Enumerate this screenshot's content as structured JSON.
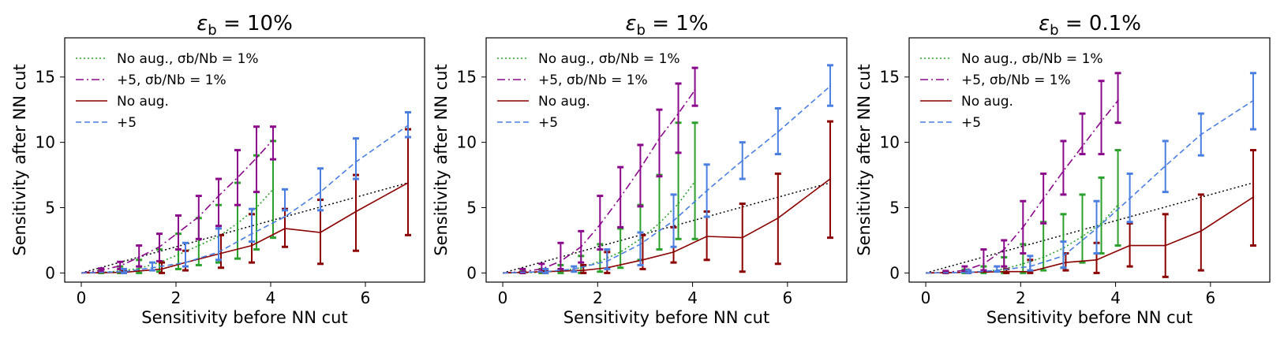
{
  "colors": {
    "green": "#2ca02c",
    "purple": "#8b0a8b",
    "darkred": "#8b0000",
    "blue": "#4a7fe0",
    "black": "#000000"
  },
  "legend_labels": [
    "No aug., σb/Nb = 1%",
    "+5, σb/Nb = 1%",
    "No aug.",
    "+5"
  ],
  "chart_data": [
    {
      "type": "line",
      "title_main": "ε",
      "title_sub": "b",
      "title_rest": " = 10%",
      "xlabel": "Sensitivity before NN cut",
      "ylabel": "Sensitivity after NN cut",
      "xlim": [
        -0.35,
        7.25
      ],
      "ylim": [
        -0.7,
        18
      ],
      "xticks": [
        0,
        2,
        4,
        6
      ],
      "yticks": [
        0,
        5,
        10,
        15
      ],
      "diagonal": [
        [
          0,
          0
        ],
        [
          6.9,
          6.9
        ]
      ],
      "series": [
        {
          "name": "No aug., σb/Nb = 1%",
          "color_key": "green",
          "style": "dotted",
          "x": [
            0,
            0.42,
            0.82,
            1.22,
            1.65,
            2.05,
            2.48,
            2.9,
            3.3,
            3.7,
            4.05
          ],
          "y": [
            0,
            0.05,
            0.15,
            0.35,
            0.8,
            1.4,
            2.1,
            2.8,
            3.8,
            5.0,
            6.4
          ],
          "lo": [
            0,
            0.0,
            0.0,
            0.0,
            0.1,
            0.3,
            0.6,
            0.8,
            1.1,
            1.8,
            2.7
          ],
          "hi": [
            0,
            0.3,
            0.5,
            1.0,
            1.8,
            3.0,
            4.2,
            5.2,
            6.9,
            9.0,
            10.1
          ]
        },
        {
          "name": "+5, σb/Nb = 1%",
          "color_key": "purple",
          "style": "dashdot",
          "x": [
            0,
            0.42,
            0.82,
            1.22,
            1.65,
            2.05,
            2.48,
            2.9,
            3.3,
            3.7,
            4.05
          ],
          "y": [
            0,
            0.2,
            0.55,
            1.2,
            2.0,
            3.1,
            4.3,
            5.9,
            7.3,
            8.8,
            10.2
          ],
          "lo": [
            0,
            0.1,
            0.3,
            0.5,
            0.9,
            1.8,
            2.6,
            3.6,
            5.2,
            6.2,
            8.7
          ],
          "hi": [
            0,
            0.35,
            0.85,
            2.1,
            3.0,
            4.4,
            5.9,
            7.2,
            9.4,
            11.2,
            11.2
          ]
        },
        {
          "name": "No aug.",
          "color_key": "darkred",
          "style": "solid",
          "x": [
            0,
            0.9,
            1.7,
            2.2,
            2.95,
            3.6,
            4.3,
            5.05,
            5.8,
            6.9
          ],
          "y": [
            0,
            0.05,
            0.3,
            0.8,
            1.5,
            2.1,
            3.4,
            3.1,
            4.7,
            6.9
          ],
          "lo": [
            0,
            0.0,
            0.0,
            0.2,
            0.4,
            0.8,
            2.0,
            0.7,
            1.7,
            2.9
          ],
          "hi": [
            0,
            0.2,
            0.8,
            1.7,
            2.9,
            4.5,
            4.9,
            5.6,
            7.5,
            11.0
          ]
        },
        {
          "name": "+5",
          "color_key": "blue",
          "style": "dashed",
          "x": [
            0,
            0.9,
            1.5,
            2.2,
            2.9,
            3.6,
            4.3,
            5.05,
            5.8,
            6.9
          ],
          "y": [
            0,
            0.1,
            0.4,
            0.8,
            1.6,
            3.0,
            4.3,
            6.2,
            8.5,
            11.3
          ],
          "lo": [
            0,
            0.0,
            0.2,
            0.5,
            1.0,
            2.4,
            4.8,
            4.8,
            7.2,
            10.4
          ],
          "hi": [
            0,
            0.3,
            0.8,
            2.3,
            3.4,
            4.9,
            6.4,
            8.0,
            10.3,
            12.3
          ]
        }
      ]
    },
    {
      "type": "line",
      "title_main": "ε",
      "title_sub": "b",
      "title_rest": " = 1%",
      "xlabel": "Sensitivity before NN cut",
      "ylabel": "Sensitivity after NN cut",
      "xlim": [
        -0.35,
        7.25
      ],
      "ylim": [
        -0.7,
        18
      ],
      "xticks": [
        0,
        2,
        4,
        6
      ],
      "yticks": [
        0,
        5,
        10,
        15
      ],
      "diagonal": [
        [
          0,
          0
        ],
        [
          6.9,
          6.9
        ]
      ],
      "series": [
        {
          "name": "No aug., σb/Nb = 1%",
          "color_key": "green",
          "style": "dotted",
          "x": [
            0,
            0.42,
            0.82,
            1.22,
            1.65,
            2.05,
            2.48,
            2.9,
            3.3,
            3.7,
            4.05
          ],
          "y": [
            0,
            0.02,
            0.05,
            0.15,
            0.4,
            0.9,
            1.6,
            2.6,
            3.8,
            5.3,
            7.0
          ],
          "lo": [
            0,
            0.0,
            0.0,
            0.0,
            0.0,
            0.1,
            0.4,
            1.0,
            1.8,
            2.6,
            2.6
          ],
          "hi": [
            0,
            0.15,
            0.3,
            0.6,
            1.3,
            2.2,
            3.4,
            5.2,
            7.5,
            11.5,
            11.5
          ]
        },
        {
          "name": "+5, σb/Nb = 1%",
          "color_key": "purple",
          "style": "dashdot",
          "x": [
            0,
            0.42,
            0.82,
            1.22,
            1.65,
            2.05,
            2.48,
            2.9,
            3.3,
            3.7,
            4.05
          ],
          "y": [
            0,
            0.1,
            0.3,
            0.9,
            2.0,
            3.7,
            5.8,
            8.0,
            10.3,
            12.2,
            14.0
          ],
          "lo": [
            0,
            0.0,
            0.1,
            0.3,
            0.8,
            1.8,
            3.5,
            5.1,
            7.4,
            9.2,
            12.8
          ],
          "hi": [
            0,
            0.3,
            0.7,
            2.3,
            3.2,
            5.9,
            8.1,
            9.8,
            12.5,
            14.5,
            15.7
          ]
        },
        {
          "name": "No aug.",
          "color_key": "darkred",
          "style": "solid",
          "x": [
            0,
            0.9,
            1.7,
            2.2,
            2.95,
            3.6,
            4.3,
            5.05,
            5.8,
            6.9
          ],
          "y": [
            0,
            0.1,
            0.2,
            0.4,
            1.0,
            1.6,
            2.8,
            2.7,
            4.2,
            7.2
          ],
          "lo": [
            0,
            0.0,
            0.0,
            0.0,
            0.3,
            0.8,
            1.0,
            0.1,
            0.7,
            2.7
          ],
          "hi": [
            0,
            0.2,
            0.6,
            1.6,
            2.9,
            3.5,
            4.7,
            5.3,
            7.6,
            11.6
          ]
        },
        {
          "name": "+5",
          "color_key": "blue",
          "style": "dashed",
          "x": [
            0,
            0.9,
            1.5,
            2.2,
            2.9,
            3.6,
            4.3,
            5.05,
            5.8,
            6.9
          ],
          "y": [
            0,
            0.1,
            0.3,
            0.9,
            2.2,
            4.0,
            6.3,
            8.6,
            10.8,
            14.3
          ],
          "lo": [
            0,
            0.0,
            0.1,
            0.3,
            0.6,
            2.0,
            4.3,
            7.2,
            9.1,
            12.8
          ],
          "hi": [
            0,
            0.3,
            0.5,
            1.8,
            3.1,
            6.0,
            8.3,
            10.0,
            12.6,
            15.9
          ]
        }
      ]
    },
    {
      "type": "line",
      "title_main": "ε",
      "title_sub": "b",
      "title_rest": " = 0.1%",
      "xlabel": "Sensitivity before NN cut",
      "ylabel": "Sensitivity after NN cut",
      "xlim": [
        -0.35,
        7.25
      ],
      "ylim": [
        -0.7,
        18
      ],
      "xticks": [
        0,
        2,
        4,
        6
      ],
      "yticks": [
        0,
        5,
        10,
        15
      ],
      "diagonal": [
        [
          0,
          0
        ],
        [
          6.9,
          6.9
        ]
      ],
      "series": [
        {
          "name": "No aug., σb/Nb = 1%",
          "color_key": "green",
          "style": "dotted",
          "x": [
            0,
            0.42,
            0.82,
            1.22,
            1.65,
            2.05,
            2.48,
            2.9,
            3.3,
            3.7,
            4.05
          ],
          "y": [
            0,
            0.02,
            0.04,
            0.1,
            0.3,
            0.7,
            1.2,
            1.9,
            2.8,
            3.8,
            5.2
          ],
          "lo": [
            0,
            0.0,
            0.0,
            0.0,
            0.0,
            0.0,
            0.2,
            0.4,
            0.8,
            1.5,
            2.1
          ],
          "hi": [
            0,
            0.1,
            0.25,
            0.5,
            1.2,
            2.2,
            3.9,
            4.5,
            6.0,
            7.3,
            9.4
          ]
        },
        {
          "name": "+5, σb/Nb = 1%",
          "color_key": "purple",
          "style": "dashdot",
          "x": [
            0,
            0.42,
            0.82,
            1.22,
            1.65,
            2.05,
            2.48,
            2.9,
            3.3,
            3.7,
            4.05
          ],
          "y": [
            0,
            0.05,
            0.2,
            0.7,
            1.8,
            3.5,
            5.7,
            7.8,
            9.7,
            11.6,
            13.2
          ],
          "lo": [
            0,
            0.0,
            0.1,
            0.2,
            0.5,
            1.5,
            3.8,
            6.0,
            9.1,
            9.1,
            11.5
          ],
          "hi": [
            0,
            0.15,
            0.5,
            1.8,
            2.5,
            5.5,
            7.6,
            10.1,
            12.2,
            14.7,
            15.3
          ]
        },
        {
          "name": "No aug.",
          "color_key": "darkred",
          "style": "solid",
          "x": [
            0,
            0.9,
            1.7,
            2.2,
            2.95,
            3.6,
            4.3,
            5.05,
            5.8,
            6.9
          ],
          "y": [
            0,
            0.05,
            0.1,
            0.1,
            0.8,
            1.0,
            2.1,
            2.1,
            3.2,
            5.8
          ],
          "lo": [
            0,
            0.0,
            0.0,
            0.0,
            0.2,
            0.0,
            0.5,
            -0.3,
            0.2,
            2.1
          ],
          "hi": [
            0,
            0.1,
            0.3,
            1.0,
            1.5,
            2.3,
            3.8,
            4.5,
            6.0,
            9.4
          ]
        },
        {
          "name": "+5",
          "color_key": "blue",
          "style": "dashed",
          "x": [
            0,
            0.9,
            1.5,
            2.2,
            2.9,
            3.6,
            4.3,
            5.05,
            5.8,
            6.9
          ],
          "y": [
            0,
            0.05,
            0.2,
            0.5,
            1.3,
            3.4,
            5.7,
            8.2,
            10.6,
            13.2
          ],
          "lo": [
            0,
            0.0,
            0.1,
            0.2,
            0.4,
            1.5,
            3.9,
            6.2,
            9.0,
            11.0
          ],
          "hi": [
            0,
            0.2,
            0.5,
            1.3,
            2.4,
            5.5,
            7.6,
            10.1,
            12.2,
            15.3
          ]
        }
      ]
    }
  ]
}
